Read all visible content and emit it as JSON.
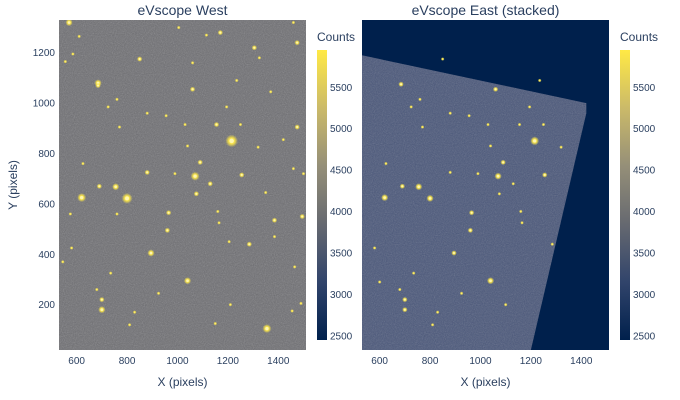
{
  "chart_data": [
    {
      "type": "heatmap",
      "title": "eVscope West",
      "xlabel": "X (pixels)",
      "ylabel": "Y (pixels)",
      "xlim": [
        530,
        1510
      ],
      "ylim": [
        20,
        1330
      ],
      "xticks": [
        600,
        800,
        1000,
        1200,
        1400
      ],
      "yticks": [
        200,
        400,
        600,
        800,
        1000,
        1200
      ],
      "colorbar": {
        "title": "Counts",
        "range": [
          2450,
          5950
        ],
        "ticks": [
          2500,
          3000,
          3500,
          4000,
          4500,
          5000,
          5500
        ],
        "colorscale": [
          "#00204c",
          "#31446b",
          "#666970",
          "#958f78",
          "#cbba69",
          "#ffe945"
        ]
      },
      "background_color": "#6e6e72",
      "stars": [
        [
          1215,
          850,
          7
        ],
        [
          1070,
          710,
          5
        ],
        [
          620,
          625,
          5
        ],
        [
          800,
          622,
          6
        ],
        [
          1355,
          105,
          5
        ],
        [
          1040,
          295,
          4
        ],
        [
          895,
          405,
          4
        ],
        [
          965,
          565,
          3
        ],
        [
          960,
          495,
          3
        ],
        [
          700,
          180,
          4
        ],
        [
          700,
          220,
          3
        ],
        [
          755,
          668,
          4
        ],
        [
          1060,
          1055,
          3
        ],
        [
          1090,
          765,
          3
        ],
        [
          1155,
          915,
          3
        ],
        [
          1255,
          715,
          3
        ],
        [
          1385,
          535,
          3
        ],
        [
          1285,
          440,
          3
        ],
        [
          1495,
          550,
          3
        ],
        [
          1475,
          905,
          3
        ],
        [
          690,
          670,
          3
        ],
        [
          685,
          1080,
          4
        ],
        [
          685,
          1070,
          3
        ],
        [
          850,
          1175,
          3
        ],
        [
          880,
          725,
          3
        ],
        [
          1075,
          640,
          3
        ],
        [
          1130,
          680,
          3
        ],
        [
          1305,
          1220,
          3
        ],
        [
          1170,
          1280,
          3
        ],
        [
          1475,
          1240,
          3
        ],
        [
          1325,
          1180,
          2
        ],
        [
          1005,
          1300,
          2
        ],
        [
          1115,
          1270,
          2
        ],
        [
          610,
          1265,
          2
        ],
        [
          585,
          1195,
          2
        ],
        [
          555,
          1165,
          2
        ],
        [
          725,
          985,
          2
        ],
        [
          770,
          905,
          2
        ],
        [
          1030,
          915,
          2
        ],
        [
          1235,
          1090,
          2
        ],
        [
          1420,
          855,
          2
        ],
        [
          1460,
          740,
          2
        ],
        [
          1500,
          720,
          2
        ],
        [
          1160,
          570,
          2
        ],
        [
          1165,
          525,
          2
        ],
        [
          1205,
          450,
          2
        ],
        [
          1385,
          470,
          2
        ],
        [
          1465,
          350,
          2
        ],
        [
          1490,
          205,
          2
        ],
        [
          1455,
          175,
          2
        ],
        [
          1210,
          200,
          2
        ],
        [
          1150,
          125,
          2
        ],
        [
          925,
          245,
          2
        ],
        [
          830,
          170,
          2
        ],
        [
          735,
          325,
          2
        ],
        [
          580,
          425,
          2
        ],
        [
          545,
          370,
          2
        ],
        [
          680,
          260,
          2
        ],
        [
          810,
          120,
          2
        ],
        [
          955,
          950,
          2
        ],
        [
          1060,
          1160,
          2
        ],
        [
          1370,
          1045,
          2
        ],
        [
          625,
          760,
          2
        ],
        [
          575,
          560,
          2
        ],
        [
          1350,
          645,
          2
        ],
        [
          1040,
          830,
          2
        ],
        [
          1250,
          915,
          2
        ],
        [
          570,
          1320,
          4
        ],
        [
          1460,
          1320,
          2
        ],
        [
          880,
          960,
          2
        ],
        [
          760,
          1015,
          2
        ],
        [
          1195,
          985,
          2
        ],
        [
          1320,
          825,
          2
        ],
        [
          990,
          720,
          2
        ],
        [
          760,
          560,
          2
        ]
      ]
    },
    {
      "type": "heatmap",
      "title": "eVscope East (stacked)",
      "xlabel": "X (pixels)",
      "ylabel": "",
      "xlim": [
        530,
        1510
      ],
      "ylim": [
        20,
        1330
      ],
      "xticks": [
        600,
        800,
        1000,
        1200,
        1400
      ],
      "yticks": [],
      "colorbar": {
        "title": "Counts",
        "range": [
          2450,
          5950
        ],
        "ticks": [
          2500,
          3000,
          3500,
          4000,
          4500,
          5000,
          5500
        ],
        "colorscale": [
          "#00204c",
          "#31446b",
          "#666970",
          "#958f78",
          "#cbba69",
          "#ffe945"
        ]
      },
      "background_color": "#00204c",
      "frame_color": "#4a577a",
      "frame_polygon": [
        [
          530,
          1190
        ],
        [
          1420,
          1000
        ],
        [
          1420,
          960
        ],
        [
          1200,
          20
        ],
        [
          530,
          20
        ]
      ],
      "stars": [
        [
          1215,
          850,
          5
        ],
        [
          1070,
          710,
          4
        ],
        [
          620,
          625,
          4
        ],
        [
          800,
          622,
          4
        ],
        [
          1040,
          295,
          4
        ],
        [
          895,
          405,
          3
        ],
        [
          965,
          565,
          3
        ],
        [
          960,
          495,
          3
        ],
        [
          700,
          180,
          3
        ],
        [
          700,
          220,
          3
        ],
        [
          755,
          668,
          4
        ],
        [
          1060,
          1055,
          3
        ],
        [
          1090,
          765,
          3
        ],
        [
          1155,
          915,
          2
        ],
        [
          1255,
          715,
          3
        ],
        [
          1285,
          440,
          2
        ],
        [
          690,
          670,
          3
        ],
        [
          685,
          1075,
          3
        ],
        [
          850,
          1175,
          2
        ],
        [
          880,
          725,
          2
        ],
        [
          1075,
          640,
          2
        ],
        [
          1130,
          680,
          2
        ],
        [
          725,
          985,
          2
        ],
        [
          770,
          905,
          2
        ],
        [
          1030,
          915,
          2
        ],
        [
          1235,
          1090,
          2
        ],
        [
          1160,
          570,
          2
        ],
        [
          1165,
          525,
          2
        ],
        [
          925,
          245,
          2
        ],
        [
          830,
          170,
          2
        ],
        [
          735,
          325,
          2
        ],
        [
          580,
          425,
          2
        ],
        [
          680,
          260,
          2
        ],
        [
          810,
          120,
          2
        ],
        [
          955,
          950,
          2
        ],
        [
          625,
          760,
          2
        ],
        [
          1040,
          830,
          2
        ],
        [
          1250,
          915,
          2
        ],
        [
          880,
          960,
          2
        ],
        [
          760,
          1015,
          2
        ],
        [
          1195,
          985,
          2
        ],
        [
          990,
          720,
          2
        ],
        [
          1320,
          825,
          2
        ],
        [
          600,
          290,
          2
        ],
        [
          1100,
          200,
          2
        ]
      ]
    }
  ]
}
